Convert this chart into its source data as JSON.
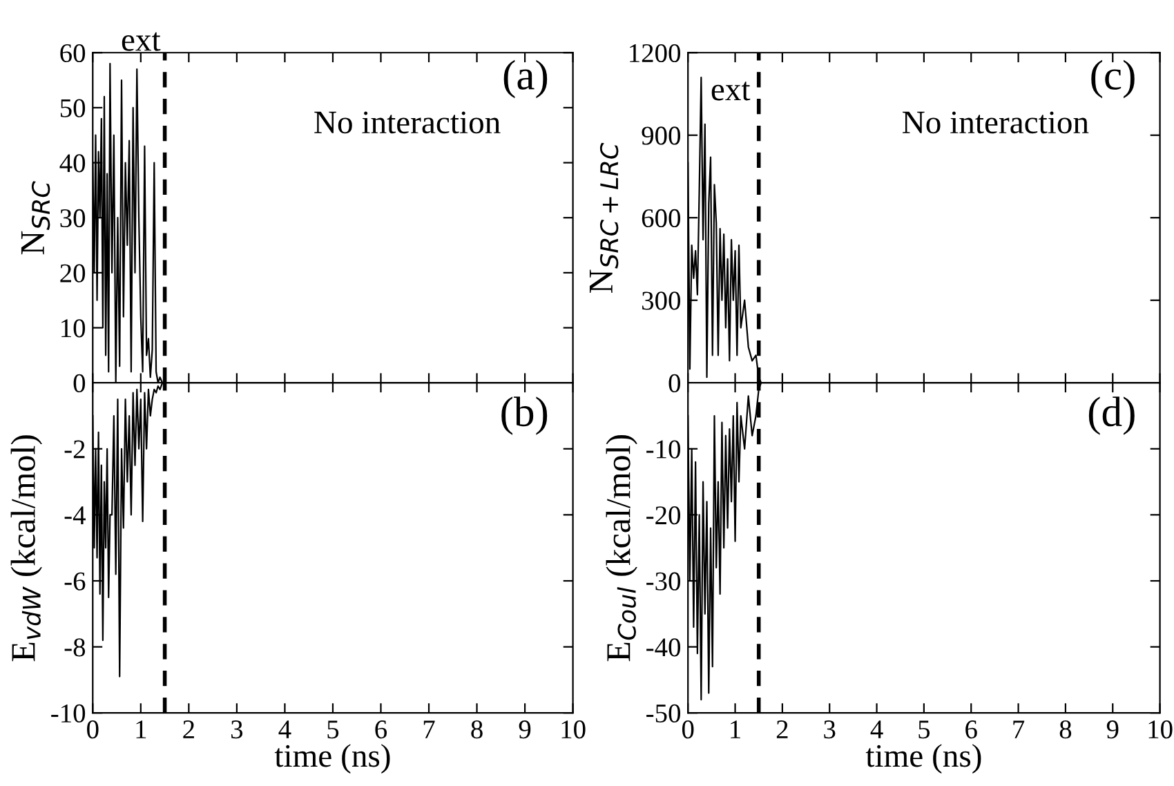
{
  "chart_data": [
    {
      "type": "line",
      "ylabel": "N$_{SRC}$",
      "xlim": [
        0,
        10
      ],
      "ylim": [
        0,
        60
      ],
      "xticks": [
        0,
        1,
        2,
        3,
        4,
        5,
        6,
        7,
        8,
        9,
        10
      ],
      "yticks": [
        0,
        10,
        20,
        30,
        40,
        50,
        60
      ],
      "tick_labels": "y",
      "grid": false,
      "legend": false,
      "annotations": [
        "(a)",
        "No interaction",
        "ext"
      ],
      "ref_lines": [
        {
          "axis": "x",
          "value": 1.5,
          "color": "#000000",
          "line_style": "dashed"
        }
      ],
      "x": [
        0,
        0.03,
        0.06,
        0.09,
        0.12,
        0.15,
        0.18,
        0.21,
        0.24,
        0.27,
        0.3,
        0.33,
        0.36,
        0.4,
        0.44,
        0.48,
        0.52,
        0.56,
        0.6,
        0.64,
        0.68,
        0.72,
        0.76,
        0.8,
        0.84,
        0.88,
        0.92,
        0.96,
        1.0,
        1.04,
        1.08,
        1.12,
        1.16,
        1.2,
        1.24,
        1.28,
        1.32,
        1.36,
        1.4,
        1.45,
        1.5,
        1.55,
        2,
        10
      ],
      "series": [
        {
          "color": "#000000",
          "values": [
            40,
            20,
            45,
            15,
            42,
            30,
            48,
            10,
            52,
            5,
            38,
            2,
            58,
            20,
            45,
            0,
            30,
            3,
            55,
            12,
            40,
            25,
            44,
            2,
            50,
            20,
            57,
            30,
            12,
            2,
            43,
            5,
            8,
            1,
            6,
            40,
            2,
            0,
            1,
            0,
            0,
            0,
            0,
            0
          ]
        }
      ]
    },
    {
      "type": "line",
      "ylabel": "N$_{SRC+LRC}$",
      "xlim": [
        0,
        10
      ],
      "ylim": [
        0,
        1200
      ],
      "xticks": [
        0,
        1,
        2,
        3,
        4,
        5,
        6,
        7,
        8,
        9,
        10
      ],
      "yticks": [
        0,
        300,
        600,
        900,
        1200
      ],
      "tick_labels": "y",
      "grid": false,
      "legend": false,
      "annotations": [
        "(c)",
        "No interaction",
        "ext"
      ],
      "ref_lines": [
        {
          "axis": "x",
          "value": 1.5,
          "color": "#000000",
          "line_style": "dashed"
        }
      ],
      "x": [
        0,
        0.04,
        0.08,
        0.12,
        0.16,
        0.2,
        0.24,
        0.28,
        0.32,
        0.36,
        0.4,
        0.44,
        0.48,
        0.52,
        0.56,
        0.6,
        0.64,
        0.68,
        0.72,
        0.76,
        0.8,
        0.84,
        0.88,
        0.92,
        0.96,
        1.0,
        1.04,
        1.08,
        1.12,
        1.2,
        1.28,
        1.36,
        1.44,
        1.5,
        1.55,
        1.6,
        2,
        10
      ],
      "series": [
        {
          "color": "#000000",
          "values": [
            800,
            50,
            500,
            380,
            480,
            320,
            700,
            1110,
            520,
            940,
            20,
            650,
            820,
            100,
            720,
            580,
            100,
            560,
            300,
            540,
            200,
            450,
            80,
            520,
            300,
            480,
            100,
            500,
            200,
            300,
            130,
            80,
            100,
            20,
            0,
            0,
            0,
            0
          ]
        }
      ]
    },
    {
      "type": "line",
      "xlabel": "time (ns)",
      "ylabel": "E$_{vdW}$ (kcal/mol)",
      "xlim": [
        0,
        10
      ],
      "ylim": [
        -10,
        0
      ],
      "xticks": [
        0,
        1,
        2,
        3,
        4,
        5,
        6,
        7,
        8,
        9,
        10
      ],
      "yticks": [
        -10,
        -8,
        -6,
        -4,
        -2
      ],
      "grid": false,
      "legend": false,
      "annotations": [
        "(b)"
      ],
      "ref_lines": [
        {
          "axis": "x",
          "value": 1.5,
          "color": "#000000",
          "line_style": "dashed"
        }
      ],
      "x": [
        0,
        0.03,
        0.06,
        0.09,
        0.12,
        0.15,
        0.18,
        0.21,
        0.24,
        0.27,
        0.3,
        0.33,
        0.36,
        0.4,
        0.44,
        0.48,
        0.52,
        0.56,
        0.6,
        0.64,
        0.68,
        0.72,
        0.76,
        0.8,
        0.84,
        0.88,
        0.92,
        0.96,
        1.0,
        1.04,
        1.08,
        1.12,
        1.16,
        1.2,
        1.24,
        1.28,
        1.32,
        1.36,
        1.4,
        1.45,
        1.5,
        1.55,
        2,
        10
      ],
      "series": [
        {
          "color": "#000000",
          "values": [
            -1,
            -5,
            -2,
            -5.3,
            -1.5,
            -6.4,
            -2.5,
            -7.8,
            -3,
            -5,
            -2,
            -6.5,
            -4,
            -4,
            -1,
            -5.8,
            -0.5,
            -8.9,
            -2,
            -4.4,
            -0.5,
            -3,
            -1,
            -4,
            -0.3,
            -2.5,
            -0.2,
            -2,
            -0.5,
            -4.2,
            -0.3,
            -2,
            -0.2,
            -1,
            -0.5,
            -0.2,
            -0.3,
            -0.1,
            -0.2,
            0,
            0,
            0,
            0,
            0
          ]
        }
      ]
    },
    {
      "type": "line",
      "xlabel": "time (ns)",
      "ylabel": "E$_{Coul}$ (kcal/mol)",
      "xlim": [
        0,
        10
      ],
      "ylim": [
        -50,
        0
      ],
      "xticks": [
        0,
        1,
        2,
        3,
        4,
        5,
        6,
        7,
        8,
        9,
        10
      ],
      "yticks": [
        -50,
        -40,
        -30,
        -20,
        -10
      ],
      "grid": false,
      "legend": false,
      "annotations": [
        "(d)"
      ],
      "ref_lines": [
        {
          "axis": "x",
          "value": 1.5,
          "color": "#000000",
          "line_style": "dashed"
        }
      ],
      "x": [
        0,
        0.04,
        0.08,
        0.12,
        0.16,
        0.2,
        0.24,
        0.28,
        0.32,
        0.36,
        0.4,
        0.44,
        0.48,
        0.52,
        0.56,
        0.6,
        0.64,
        0.68,
        0.72,
        0.76,
        0.8,
        0.84,
        0.88,
        0.92,
        0.96,
        1.0,
        1.04,
        1.08,
        1.12,
        1.2,
        1.28,
        1.36,
        1.44,
        1.5,
        1.55,
        1.6,
        2,
        10
      ],
      "series": [
        {
          "color": "#000000",
          "values": [
            -5,
            -30,
            -10,
            -37,
            -12,
            -41,
            -20,
            -48,
            -15,
            -35,
            -18,
            -47,
            -22,
            -43,
            -5,
            -28,
            -15,
            -32,
            -6,
            -25,
            -8,
            -22,
            -7,
            -18,
            -5,
            -24,
            -3,
            -15,
            -5,
            -10,
            -2,
            -8,
            -5,
            -1,
            0,
            0,
            0,
            0
          ]
        }
      ]
    }
  ]
}
